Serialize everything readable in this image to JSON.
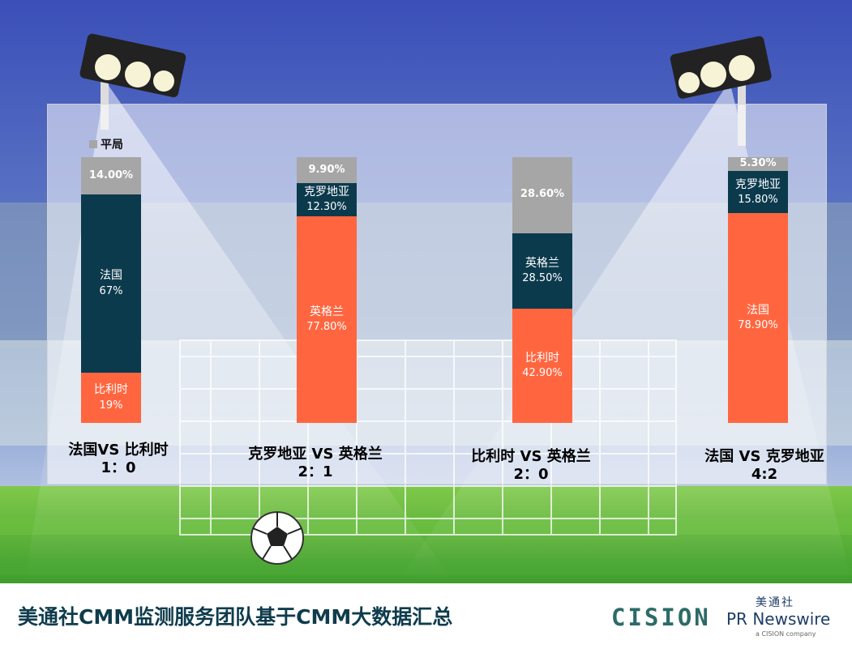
{
  "chart_data": {
    "type": "bar",
    "stacked": true,
    "legend": {
      "entries": [
        "平局"
      ],
      "color": "#a6a6a6",
      "placement": "top-left"
    },
    "matches": [
      {
        "title": "法国VS 比利时",
        "score": "1：0",
        "segments": [
          {
            "label": "比利时",
            "value": 19,
            "value_label": "19%",
            "color": "#ff6640"
          },
          {
            "label": "法国",
            "value": 67,
            "value_label": "67%",
            "color": "#0c3a4d"
          },
          {
            "label": "",
            "value": 14.0,
            "value_label": "14.00%",
            "color": "#a6a6a6"
          }
        ]
      },
      {
        "title": "克罗地亚 VS 英格兰",
        "score": "2：1",
        "segments": [
          {
            "label": "英格兰",
            "value": 77.8,
            "value_label": "77.80%",
            "color": "#ff6640"
          },
          {
            "label": "克罗地亚",
            "value": 12.3,
            "value_label": "12.30%",
            "color": "#0c3a4d"
          },
          {
            "label": "",
            "value": 9.9,
            "value_label": "9.90%",
            "color": "#a6a6a6"
          }
        ]
      },
      {
        "title": "比利时 VS 英格兰",
        "score": "2：0",
        "segments": [
          {
            "label": "比利时",
            "value": 42.9,
            "value_label": "42.90%",
            "color": "#ff6640"
          },
          {
            "label": "英格兰",
            "value": 28.5,
            "value_label": "28.50%",
            "color": "#0c3a4d"
          },
          {
            "label": "",
            "value": 28.6,
            "value_label": "28.60%",
            "color": "#a6a6a6"
          }
        ]
      },
      {
        "title": "法国 VS 克罗地亚",
        "score": "4:2",
        "segments": [
          {
            "label": "法国",
            "value": 78.9,
            "value_label": "78.90%",
            "color": "#ff6640"
          },
          {
            "label": "克罗地亚",
            "value": 15.8,
            "value_label": "15.80%",
            "color": "#0c3a4d"
          },
          {
            "label": "",
            "value": 5.3,
            "value_label": "5.30%",
            "color": "#a6a6a6"
          }
        ]
      }
    ]
  },
  "footer": {
    "title": "美通社CMM监测服务团队基于CMM大数据汇总",
    "cision_logo": "CISION",
    "pr_logo_cn": "美通社",
    "pr_logo_en": "PR Newswire",
    "pr_logo_sub": "a CISION company"
  },
  "colors": {
    "sky": "#3f51b5",
    "grass": "#5bb53c",
    "draw": "#a6a6a6",
    "dark": "#0c3a4d",
    "orange": "#ff6640"
  }
}
